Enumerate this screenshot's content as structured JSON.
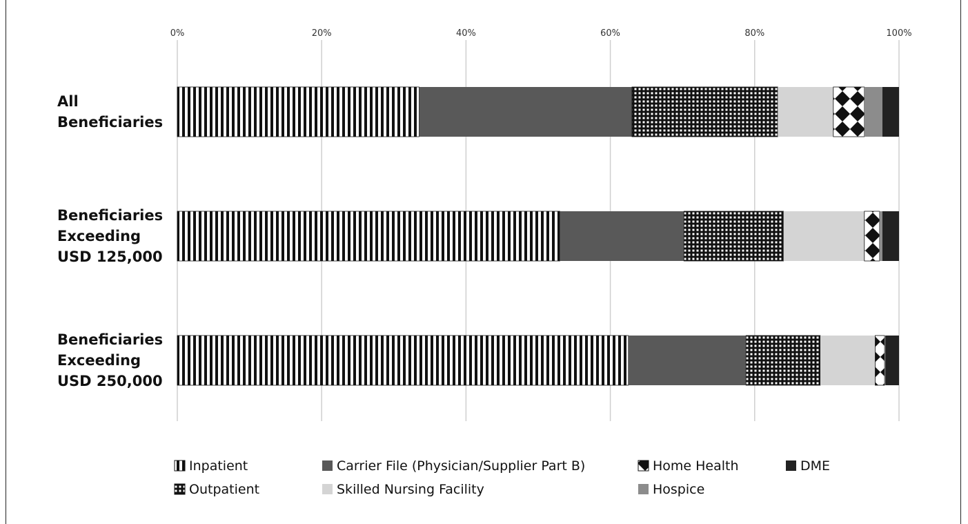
{
  "chart_data": {
    "type": "bar",
    "orientation": "horizontal",
    "stacked": "percent",
    "xlim": [
      0,
      100
    ],
    "x_ticks": [
      "0%",
      "20%",
      "40%",
      "60%",
      "80%",
      "100%"
    ],
    "categories": [
      [
        "All",
        "Beneficiaries"
      ],
      [
        "Beneficiaries",
        "Exceeding",
        "USD 125,000"
      ],
      [
        "Beneficiaries",
        "Exceeding",
        "USD 250,000"
      ]
    ],
    "series": [
      {
        "name": "Inpatient",
        "pattern": "vstripe",
        "color": "#111111",
        "values": [
          33.5,
          53.0,
          62.5
        ]
      },
      {
        "name": "Carrier File (Physician/Supplier Part B)",
        "pattern": "solid",
        "color": "#595959",
        "values": [
          29.5,
          17.2,
          16.3
        ]
      },
      {
        "name": "Outpatient",
        "pattern": "grid",
        "color": "#111111",
        "values": [
          20.2,
          13.8,
          10.3
        ]
      },
      {
        "name": "Skilled Nursing Facility",
        "pattern": "solid",
        "color": "#d4d4d4",
        "values": [
          7.7,
          11.2,
          7.6
        ]
      },
      {
        "name": "Home Health",
        "pattern": "diamond",
        "color": "#111111",
        "values": [
          4.3,
          2.1,
          1.3
        ]
      },
      {
        "name": "Hospice",
        "pattern": "solid",
        "color": "#8c8c8c",
        "values": [
          2.5,
          0.4,
          0.1
        ]
      },
      {
        "name": "DME",
        "pattern": "solid",
        "color": "#222222",
        "values": [
          2.3,
          2.3,
          1.9
        ]
      }
    ],
    "legend_position": "bottom",
    "grid": true
  }
}
